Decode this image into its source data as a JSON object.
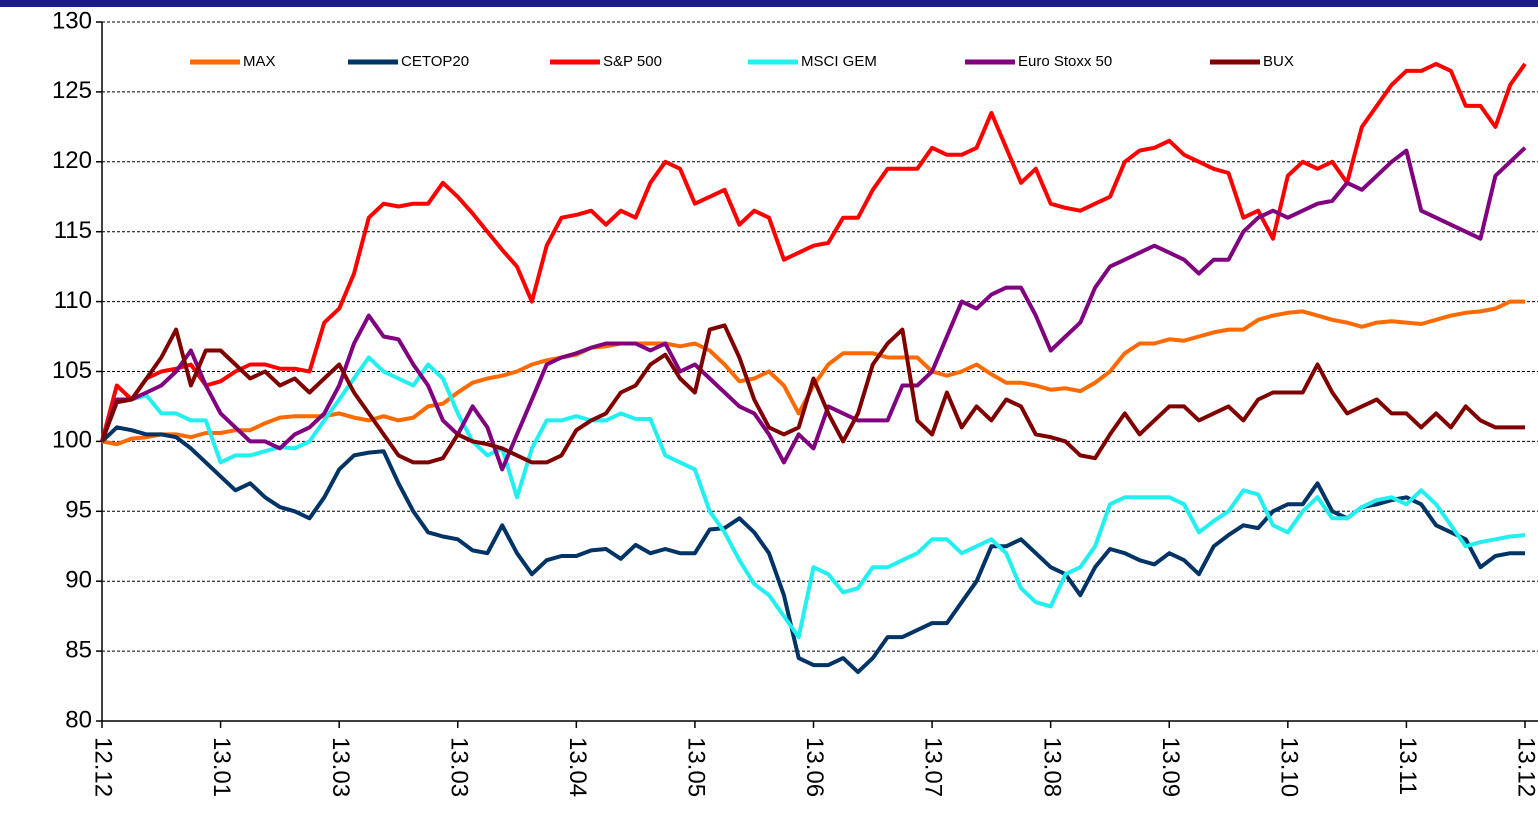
{
  "chart_data": {
    "type": "line",
    "categories": [
      "12.12",
      null,
      null,
      null,
      null,
      null,
      null,
      null,
      "13.01",
      null,
      null,
      null,
      null,
      null,
      null,
      null,
      "13.03",
      null,
      null,
      null,
      null,
      null,
      null,
      null,
      "13.03",
      null,
      null,
      null,
      null,
      null,
      null,
      null,
      "13.04",
      null,
      null,
      null,
      null,
      null,
      null,
      null,
      "13.05",
      null,
      null,
      null,
      null,
      null,
      null,
      null,
      "13.06",
      null,
      null,
      null,
      null,
      null,
      null,
      null,
      "13.07",
      null,
      null,
      null,
      null,
      null,
      null,
      null,
      "13.08",
      null,
      null,
      null,
      null,
      null,
      null,
      null,
      "13.09",
      null,
      null,
      null,
      null,
      null,
      null,
      null,
      "13.10",
      null,
      null,
      null,
      null,
      null,
      null,
      null,
      "13.11",
      null,
      null,
      null,
      null,
      null,
      null,
      null,
      "13.12"
    ],
    "series": [
      {
        "name": "MAX",
        "color": "#ff6a00",
        "values": [
          100,
          99.8,
          100.2,
          100.3,
          100.5,
          100.5,
          100.3,
          100.6,
          100.6,
          100.8,
          100.8,
          101.3,
          101.7,
          101.8,
          101.8,
          101.8,
          102,
          101.7,
          101.5,
          101.8,
          101.5,
          101.7,
          102.5,
          102.7,
          103.5,
          104.2,
          104.5,
          104.7,
          105,
          105.5,
          105.8,
          106,
          106.2,
          106.7,
          106.8,
          107,
          107,
          107,
          107,
          106.8,
          107,
          106.5,
          105.5,
          104.3,
          104.5,
          105,
          104,
          102,
          104,
          105.5,
          106.3,
          106.3,
          106.3,
          106,
          106,
          106,
          105,
          104.7,
          105,
          105.5,
          104.8,
          104.2,
          104.2,
          104,
          103.7,
          103.8,
          103.6,
          104.2,
          105,
          106.3,
          107,
          107,
          107.3,
          107.2,
          107.5,
          107.8,
          108,
          108,
          108.7,
          109,
          109.2,
          109.3,
          109,
          108.7,
          108.5,
          108.2,
          108.5,
          108.6,
          108.5,
          108.4,
          108.7,
          109,
          109.2,
          109.3,
          109.5,
          110,
          110
        ]
      },
      {
        "name": "CETOP20",
        "color": "#003366",
        "values": [
          100,
          101,
          100.8,
          100.5,
          100.5,
          100.3,
          99.5,
          98.5,
          97.5,
          96.5,
          97,
          96,
          95.3,
          95,
          94.5,
          96,
          98,
          99,
          99.2,
          99.3,
          97,
          95,
          93.5,
          93.2,
          93,
          92.2,
          92,
          94,
          92,
          90.5,
          91.5,
          91.8,
          91.8,
          92.2,
          92.3,
          91.6,
          92.6,
          92,
          92.3,
          92,
          92,
          93.7,
          93.8,
          94.5,
          93.5,
          92,
          89,
          84.5,
          84,
          84,
          84.5,
          83.5,
          84.5,
          86,
          86,
          86.5,
          87,
          87,
          88.5,
          90,
          92.5,
          92.5,
          93,
          92,
          91,
          90.5,
          89,
          91,
          92.3,
          92,
          91.5,
          91.2,
          92,
          91.5,
          90.5,
          92.5,
          93.3,
          94,
          93.8,
          95,
          95.5,
          95.5,
          97,
          95,
          94.5,
          95.3,
          95.5,
          95.8,
          96,
          95.5,
          94,
          93.5,
          93,
          91,
          91.8,
          92,
          92
        ]
      },
      {
        "name": "S&P 500",
        "color": "#ff0000",
        "values": [
          100,
          104,
          103,
          104.5,
          105,
          105.2,
          105.5,
          104,
          104.3,
          105,
          105.5,
          105.5,
          105.2,
          105.2,
          105,
          108.5,
          109.5,
          112,
          116,
          117,
          116.8,
          117,
          117,
          118.5,
          117.5,
          116.3,
          115,
          113.7,
          112.5,
          110,
          114,
          116,
          116.2,
          116.5,
          115.5,
          116.5,
          116,
          118.5,
          120,
          119.5,
          117,
          117.5,
          118,
          115.5,
          116.5,
          116,
          113,
          113.5,
          114,
          114.2,
          116,
          116,
          118,
          119.5,
          119.5,
          119.5,
          121,
          120.5,
          120.5,
          121,
          123.5,
          121,
          118.5,
          119.5,
          117,
          116.7,
          116.5,
          117,
          117.5,
          120,
          120.8,
          121,
          121.5,
          120.5,
          120,
          119.5,
          119.2,
          116,
          116.5,
          114.5,
          119,
          120,
          119.5,
          120,
          118.5,
          122.5,
          124,
          125.5,
          126.5,
          126.5,
          127,
          126.5,
          124,
          124,
          122.5,
          125.5,
          127
        ]
      },
      {
        "name": "MSCI GEM",
        "color": "#22f0f0",
        "values": [
          100,
          103,
          103,
          103.3,
          102,
          102,
          101.5,
          101.5,
          98.5,
          99,
          99,
          99.3,
          99.6,
          99.5,
          100,
          101.5,
          103,
          104.5,
          106,
          105,
          104.5,
          104,
          105.5,
          104.5,
          102,
          100,
          99,
          99.5,
          96,
          99.5,
          101.5,
          101.5,
          101.8,
          101.5,
          101.5,
          102,
          101.6,
          101.6,
          99,
          98.5,
          98,
          95,
          93.5,
          91.5,
          89.8,
          89,
          87.5,
          86,
          91,
          90.5,
          89.2,
          89.5,
          91,
          91,
          91.5,
          92,
          93,
          93,
          92,
          92.5,
          93,
          92,
          89.5,
          88.5,
          88.2,
          90.5,
          91,
          92.5,
          95.5,
          96,
          96,
          96,
          96,
          95.5,
          93.5,
          94.3,
          95,
          96.5,
          96.2,
          94,
          93.5,
          95,
          96,
          94.5,
          94.5,
          95.3,
          95.8,
          96,
          95.5,
          96.5,
          95.5,
          94,
          92.5,
          92.8,
          93,
          93.2,
          93.3
        ]
      },
      {
        "name": "Euro Stoxx 50",
        "color": "#800080",
        "values": [
          100,
          103,
          103,
          103.5,
          104,
          105,
          106.5,
          104,
          102,
          101,
          100,
          100,
          99.5,
          100.5,
          101,
          102,
          104,
          107,
          109,
          107.5,
          107.3,
          105.5,
          104,
          101.5,
          100.5,
          102.5,
          101,
          98,
          100.5,
          103,
          105.5,
          106,
          106.3,
          106.7,
          107,
          107,
          107,
          106.5,
          107,
          105,
          105.5,
          104.5,
          103.5,
          102.5,
          102,
          100.5,
          98.5,
          100.5,
          99.5,
          102.5,
          102,
          101.5,
          101.5,
          101.5,
          104,
          104,
          105,
          107.5,
          110,
          109.5,
          110.5,
          111,
          111,
          109,
          106.5,
          107.5,
          108.5,
          111,
          112.5,
          113,
          113.5,
          114,
          113.5,
          113,
          112,
          113,
          113,
          115,
          116,
          116.5,
          116,
          116.5,
          117,
          117.2,
          118.5,
          118,
          119,
          120,
          120.8,
          116.5,
          116,
          115.5,
          115,
          114.5,
          119,
          120,
          121
        ]
      },
      {
        "name": "BUX",
        "color": "#800000",
        "values": [
          100,
          102.8,
          103,
          104.5,
          106,
          108,
          104,
          106.5,
          106.5,
          105.5,
          104.5,
          105,
          104,
          104.5,
          103.5,
          104.5,
          105.5,
          103.5,
          102,
          100.5,
          99,
          98.5,
          98.5,
          98.8,
          100.5,
          100,
          99.8,
          99.5,
          99,
          98.5,
          98.5,
          99,
          100.8,
          101.5,
          102,
          103.5,
          104,
          105.5,
          106.2,
          104.5,
          103.5,
          108,
          108.3,
          106,
          103,
          101,
          100.5,
          101,
          104.5,
          102,
          100,
          102,
          105.5,
          107,
          108,
          101.5,
          100.5,
          103.5,
          101,
          102.5,
          101.5,
          103,
          102.5,
          100.5,
          100.3,
          100,
          99,
          98.8,
          100.5,
          102,
          100.5,
          101.5,
          102.5,
          102.5,
          101.5,
          102,
          102.5,
          101.5,
          103,
          103.5,
          103.5,
          103.5,
          105.5,
          103.5,
          102,
          102.5,
          103,
          102,
          102,
          101,
          102,
          101,
          102.5,
          101.5,
          101,
          101,
          101
        ]
      }
    ],
    "ylim": [
      80,
      130
    ],
    "yticks": [
      80,
      85,
      90,
      95,
      100,
      105,
      110,
      115,
      120,
      125,
      130
    ],
    "grid": true
  }
}
